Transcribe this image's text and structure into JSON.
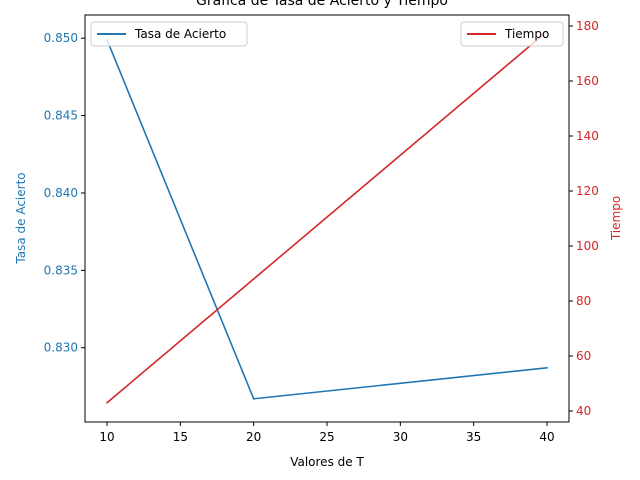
{
  "chart_data": {
    "type": "line",
    "title": "Gráfica de Tasa de Acierto y Tiempo",
    "xlabel": "Valores de T",
    "x": [
      10,
      20,
      40
    ],
    "xlim": [
      8.5,
      41.5
    ],
    "xticks": [
      10,
      15,
      20,
      25,
      30,
      35,
      40
    ],
    "left_axis": {
      "label": "Tasa de Acierto",
      "color": "#1f77b4",
      "ylim": [
        0.8252,
        0.8515
      ],
      "ticks": [
        0.83,
        0.835,
        0.84,
        0.845,
        0.85
      ],
      "tick_labels": [
        "0.830",
        "0.835",
        "0.840",
        "0.845",
        "0.850"
      ]
    },
    "right_axis": {
      "label": "Tiempo",
      "color": "#d62728",
      "ylim": [
        36,
        184
      ],
      "ticks": [
        40,
        60,
        80,
        100,
        120,
        140,
        160,
        180
      ],
      "tick_labels": [
        "40",
        "60",
        "80",
        "100",
        "120",
        "140",
        "160",
        "180"
      ]
    },
    "series": [
      {
        "name": "Tasa de Acierto",
        "axis": "left",
        "color": "#1f77b4",
        "values": [
          0.8499,
          0.8267,
          0.8287
        ]
      },
      {
        "name": "Tiempo",
        "axis": "right",
        "color": "#d62728",
        "values": [
          43,
          88,
          178
        ]
      }
    ],
    "legends": [
      {
        "placement": "upper-left",
        "entries": [
          "Tasa de Acierto"
        ]
      },
      {
        "placement": "upper-right",
        "entries": [
          "Tiempo"
        ]
      }
    ],
    "grid": false
  }
}
